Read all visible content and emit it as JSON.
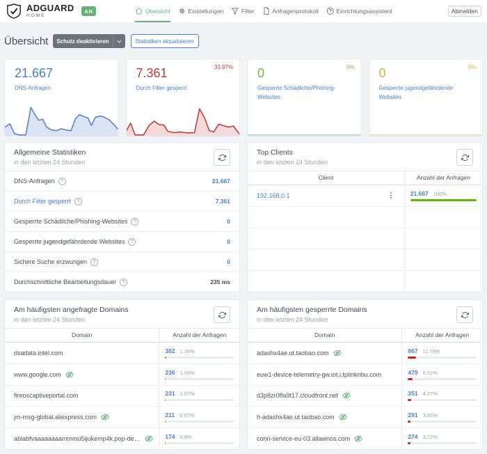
{
  "colors": {
    "accent_green": "#67b279",
    "link_blue": "#467fcf",
    "stat_red": "#c23d38",
    "stat_green": "#84b147",
    "stat_yellow": "#d9b430",
    "bar_green": "#5eba00",
    "bar_red": "#cd201f",
    "background": "#f1f4f7"
  },
  "header": {
    "brand_title": "ADGUARD",
    "brand_subtitle": "HOME",
    "status_badge": "AN",
    "nav": [
      {
        "label": "Übersicht",
        "icon": "home-icon",
        "active": true
      },
      {
        "label": "Einstellungen",
        "icon": "gear-icon",
        "active": false
      },
      {
        "label": "Filter",
        "icon": "funnel-icon",
        "active": false
      },
      {
        "label": "Anfragenprotokoll",
        "icon": "file-icon",
        "active": false
      },
      {
        "label": "Einrichtungsassistent",
        "icon": "help-circle-icon",
        "active": false
      }
    ],
    "logout_label": "Abmelden"
  },
  "page": {
    "title": "Übersicht",
    "disable_protection_label": "Schutz deaktivieren",
    "refresh_statistics_label": "Statistiken aktualisieren"
  },
  "cards": [
    {
      "value": "21.667",
      "label": "DNS-Anfragen",
      "percent": "",
      "value_color": "#467fcf"
    },
    {
      "value": "7.361",
      "label": "Durch Filter gesperrt",
      "percent": "33.97%",
      "value_color": "#c23d38"
    },
    {
      "value": "0",
      "label": "Gesperrte Schädliche/Phishing-Websites",
      "percent": "0%",
      "value_color": "#84b147"
    },
    {
      "value": "0",
      "label": "Gesperrte jugendgefährdende Websites",
      "percent": "0%",
      "value_color": "#d9b430"
    }
  ],
  "chart_data": [
    {
      "type": "area",
      "title": "DNS-Anfragen (letzte 24 Stunden, Sparkline ohne Achsen)",
      "line_color": "#5b82c2",
      "fill_color": "#dbe4f4",
      "points": [
        [
          0,
          0.24
        ],
        [
          0.045,
          0.34
        ],
        [
          0.085,
          0.04
        ],
        [
          0.13,
          0.0
        ],
        [
          0.185,
          0.0
        ],
        [
          0.23,
          0.84
        ],
        [
          0.27,
          0.6
        ],
        [
          0.3,
          0.45
        ],
        [
          0.335,
          0.48
        ],
        [
          0.37,
          0.24
        ],
        [
          0.41,
          0.16
        ],
        [
          0.455,
          0.13
        ],
        [
          0.5,
          0.19
        ],
        [
          0.545,
          0.15
        ],
        [
          0.585,
          0.13
        ],
        [
          0.625,
          0.5
        ],
        [
          0.66,
          0.62
        ],
        [
          0.7,
          0.56
        ],
        [
          0.735,
          0.52
        ],
        [
          0.765,
          0.29
        ],
        [
          0.8,
          0.54
        ],
        [
          0.845,
          0.58
        ],
        [
          0.875,
          0.55
        ],
        [
          0.92,
          0.47
        ],
        [
          0.96,
          0.33
        ],
        [
          1,
          0.18
        ]
      ],
      "y_scale": "relativ (0-1 der Diagrammhöhe)"
    },
    {
      "type": "area",
      "title": "Durch Filter gesperrt (letzte 24 Stunden, Sparkline ohne Achsen)",
      "line_color": "#c23d38",
      "fill_color": "#f2dada",
      "points": [
        [
          0,
          0.14
        ],
        [
          0.035,
          0.36
        ],
        [
          0.075,
          0.0
        ],
        [
          0.15,
          0.0
        ],
        [
          0.2,
          0.3
        ],
        [
          0.245,
          0.42
        ],
        [
          0.285,
          0.32
        ],
        [
          0.33,
          0.3
        ],
        [
          0.365,
          0.11
        ],
        [
          0.42,
          0.07
        ],
        [
          0.47,
          0.09
        ],
        [
          0.52,
          0.07
        ],
        [
          0.565,
          0.06
        ],
        [
          0.6,
          0.07
        ],
        [
          0.645,
          0.8
        ],
        [
          0.69,
          0.52
        ],
        [
          0.73,
          0.14
        ],
        [
          0.77,
          0.09
        ],
        [
          0.815,
          0.33
        ],
        [
          0.86,
          0.28
        ],
        [
          0.9,
          0.24
        ],
        [
          0.945,
          0.27
        ],
        [
          1,
          0.02
        ]
      ],
      "y_scale": "relativ (0-1 der Diagrammhöhe)"
    },
    {
      "type": "area",
      "title": "Gesperrte Schädliche/Phishing-Websites (flach, alle Werte 0)",
      "line_color": "#b3d8bc",
      "fill_color": "#ffffff",
      "points": [
        [
          0,
          0
        ],
        [
          1,
          0
        ]
      ],
      "y_scale": "relativ (0-1 der Diagrammhöhe)"
    },
    {
      "type": "area",
      "title": "Gesperrte jugendgefährdende Websites (flach, alle Werte 0)",
      "line_color": "#ecdfae",
      "fill_color": "#ffffff",
      "points": [
        [
          0,
          0
        ],
        [
          1,
          0
        ]
      ],
      "y_scale": "relativ (0-1 der Diagrammhöhe)"
    }
  ],
  "general_stats": {
    "title": "Allgemeine Statistiken",
    "subtitle": "in den letzten 24 Stunden",
    "rows": [
      {
        "label": "DNS-Anfragen",
        "value": "21.667",
        "link": false,
        "dark": false
      },
      {
        "label": "Durch Filter gesperrt",
        "value": "7.361",
        "link": true,
        "dark": false
      },
      {
        "label": "Gesperrte Schädliche/Phishing-Websites",
        "value": "0",
        "link": false,
        "dark": false
      },
      {
        "label": "Gesperrte jugendgefährdende Websites",
        "value": "0",
        "link": false,
        "dark": false
      },
      {
        "label": "Sichere Suche erzwungen",
        "value": "0",
        "link": false,
        "dark": false
      },
      {
        "label": "Durchschnittliche Bearbeitungsdauer",
        "value": "235 ms",
        "link": false,
        "dark": true
      }
    ]
  },
  "top_clients": {
    "title": "Top Clients",
    "subtitle": "in den letzten 24 Stunden",
    "columns": [
      "Client",
      "Anzahl der Anfragen"
    ],
    "rows": [
      {
        "client": "192.168.0.1",
        "count": "21.667",
        "percent": "100%",
        "bar": 100
      }
    ],
    "empty_rows": 4
  },
  "top_queried": {
    "title": "Am häufigsten angefragte Domains",
    "subtitle": "in den letzten 24 Stunden",
    "columns": [
      "Domain",
      "Anzahl der Anfragen"
    ],
    "bar_color": "green",
    "rows": [
      {
        "domain": "dsadata.intel.com",
        "icon": false,
        "count": "302",
        "percent": "1.39%",
        "bar": 1.39
      },
      {
        "domain": "www.google.com",
        "icon": true,
        "count": "236",
        "percent": "1.09%",
        "bar": 1.09
      },
      {
        "domain": "fireoscaptiveportal.com",
        "icon": false,
        "count": "231",
        "percent": "1.07%",
        "bar": 1.07
      },
      {
        "domain": "jm-msg-global.aliexpress.com",
        "icon": true,
        "count": "211",
        "percent": "0.97%",
        "bar": 0.97
      },
      {
        "domain": "ablabfvaaaaaaaammmu5ijukemp4k.pop-de…",
        "icon": true,
        "count": "174",
        "percent": "0.8%",
        "bar": 0.8
      }
    ]
  },
  "top_blocked": {
    "title": "Am häufigsten gesperrte Domains",
    "subtitle": "in den letzten 24 Stunden",
    "columns": [
      "Domain",
      "Anzahl der Anfragen"
    ],
    "bar_color": "red",
    "rows": [
      {
        "domain": "adashx4ae.ut.taobao.com",
        "icon": true,
        "count": "867",
        "percent": "11.78%",
        "bar": 11.78
      },
      {
        "domain": "euw1-device-telemetry-gw.iot.i.tplinknbu.com",
        "icon": false,
        "count": "479",
        "percent": "6.51%",
        "bar": 6.51
      },
      {
        "domain": "d3p8zr0ffa9t17.cloudfront.net",
        "icon": true,
        "count": "351",
        "percent": "4.77%",
        "bar": 4.77
      },
      {
        "domain": "h-adashx4ae.ut.taobao.com",
        "icon": true,
        "count": "291",
        "percent": "3.95%",
        "bar": 3.95
      },
      {
        "domain": "conn-service-eu-03.allawnos.com",
        "icon": true,
        "count": "274",
        "percent": "3.72%",
        "bar": 3.72
      }
    ]
  }
}
